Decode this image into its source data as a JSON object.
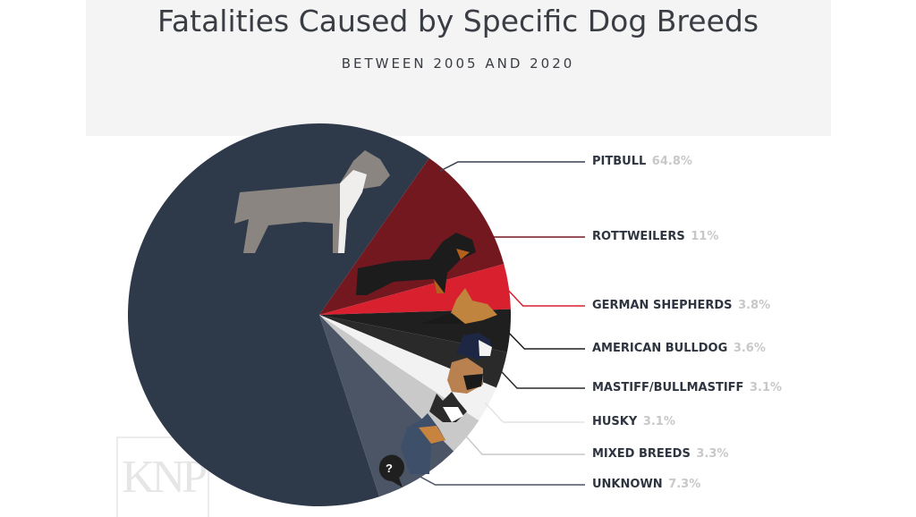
{
  "title": "Fatalities Caused by Specific Dog Breeds",
  "subtitle": "BETWEEN 2005 AND 2020",
  "logo": "KNP",
  "colors": {
    "header_bg": "#f4f4f4",
    "pitbull": "#2e3a4a",
    "rottweilers": "#741820",
    "german_shepherds": "#d8202f",
    "american_bulldog": "#1f1f1f",
    "mastiff": "#2a2a2a",
    "husky": "#f2f2f2",
    "mixed_breeds": "#c9c9c9",
    "unknown": "#4b5566",
    "percent_text": "#c8c8c8"
  },
  "chart_data": {
    "type": "pie",
    "title": "Fatalities Caused by Specific Dog Breeds",
    "subtitle": "BETWEEN 2005 AND 2020",
    "slices": [
      {
        "label": "PITBULL",
        "percent_label": "64.8%",
        "value": 64.8,
        "color": "#2e3a4a",
        "icon": "pitbull-dog-icon"
      },
      {
        "label": "ROTTWEILERS",
        "percent_label": "11%",
        "value": 11,
        "color": "#741820",
        "icon": "rottweiler-dog-icon"
      },
      {
        "label": "GERMAN SHEPHERDS",
        "percent_label": "3.8%",
        "value": 3.8,
        "color": "#d8202f",
        "icon": "german-shepherd-dog-icon"
      },
      {
        "label": "AMERICAN BULLDOG",
        "percent_label": "3.6%",
        "value": 3.6,
        "color": "#1f1f1f",
        "icon": "american-bulldog-dog-icon"
      },
      {
        "label": "MASTIFF/BULLMASTIFF",
        "percent_label": "3.1%",
        "value": 3.1,
        "color": "#2a2a2a",
        "icon": "mastiff-dog-icon"
      },
      {
        "label": "HUSKY",
        "percent_label": "3.1%",
        "value": 3.1,
        "color": "#f2f2f2",
        "icon": "husky-dog-icon"
      },
      {
        "label": "MIXED BREEDS",
        "percent_label": "3.3%",
        "value": 3.3,
        "color": "#c9c9c9",
        "icon": "mixed-breed-dog-icon"
      },
      {
        "label": "UNKNOWN",
        "percent_label": "7.3%",
        "value": 7.3,
        "color": "#4b5566",
        "icon": "question-mark-icon"
      }
    ],
    "legend": "right",
    "unknown_icon_text": "?"
  }
}
